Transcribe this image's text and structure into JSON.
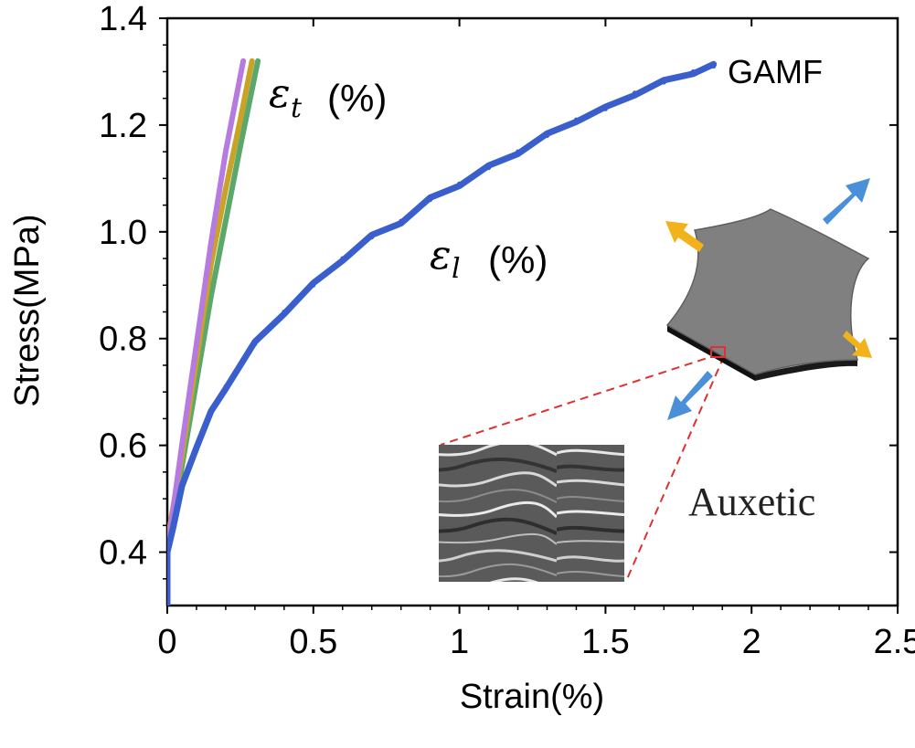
{
  "chart_data": {
    "type": "line",
    "xlabel": "Strain(%)",
    "ylabel": "Stress(MPa)",
    "xlim": [
      0,
      2.5
    ],
    "ylim": [
      0.3,
      1.4
    ],
    "x_ticks": [
      "0",
      "0.5",
      "1",
      "1.5",
      "2",
      "2.5"
    ],
    "y_ticks": [
      "0.4",
      "0.6",
      "0.8",
      "1.0",
      "1.2",
      "1.4"
    ],
    "grid": false,
    "legend": "none",
    "series": [
      {
        "color": "#3a5fcd",
        "x": [
          0,
          0.02,
          0.05,
          0.1,
          0.15,
          0.2,
          0.3,
          0.4,
          0.5,
          0.6,
          0.7,
          0.8,
          0.9,
          1.0,
          1.1,
          1.2,
          1.3,
          1.4,
          1.5,
          1.6,
          1.7,
          1.8,
          1.87
        ],
        "y": [
          0.4,
          0.45,
          0.52,
          0.6,
          0.66,
          0.71,
          0.79,
          0.85,
          0.9,
          0.95,
          0.99,
          1.02,
          1.06,
          1.09,
          1.12,
          1.15,
          1.18,
          1.21,
          1.23,
          1.26,
          1.28,
          1.3,
          1.31
        ]
      },
      {
        "color": "#b57be0",
        "x": [
          0,
          0.05,
          0.1,
          0.15,
          0.2,
          0.26
        ],
        "y": [
          0.4,
          0.6,
          0.79,
          0.98,
          1.15,
          1.32
        ]
      },
      {
        "color": "#c9a227",
        "x": [
          0,
          0.05,
          0.1,
          0.15,
          0.2,
          0.25,
          0.29
        ],
        "y": [
          0.42,
          0.58,
          0.76,
          0.94,
          1.08,
          1.21,
          1.32
        ]
      },
      {
        "color": "#5aa86b",
        "x": [
          0,
          0.05,
          0.1,
          0.15,
          0.2,
          0.25,
          0.31
        ],
        "y": [
          0.42,
          0.56,
          0.72,
          0.88,
          1.02,
          1.16,
          1.32
        ]
      }
    ],
    "annotations": {
      "gamf": "GAMF",
      "eps_t_symbol": "ε",
      "eps_t_sub": "t",
      "eps_t_unit": "(%)",
      "eps_l_symbol": "ε",
      "eps_l_sub": "l",
      "eps_l_unit": "(%)",
      "auxetic": "Auxetic"
    },
    "colors": {
      "main_curve": "#3a5fcd",
      "arrow_orange": "#f2b21c",
      "arrow_blue": "#4a90d9",
      "sheet_top": "#7a7a7a",
      "sheet_edge": "#111111",
      "dashed_line": "#e03030"
    }
  }
}
